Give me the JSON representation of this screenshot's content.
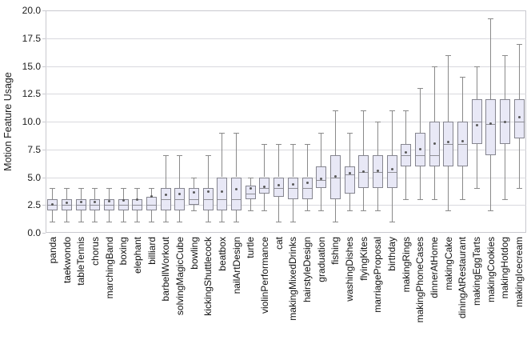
{
  "chart_data": {
    "type": "boxplot",
    "title": "",
    "xlabel": "",
    "ylabel": "Motion Feature Usage",
    "ylim": [
      0,
      20
    ],
    "yticks": [
      0,
      2.5,
      5,
      7.5,
      10,
      12.5,
      15,
      17.5,
      20
    ],
    "grid": "horizontal",
    "legend": "none",
    "marker_note": "dot inside each box marks the mean",
    "categories": [
      "panda",
      "taekwondo",
      "tableTennis",
      "chorus",
      "marchingBand",
      "boxing",
      "elephant",
      "billiard",
      "barbellWorkout",
      "solvingMagicCube",
      "bowling",
      "kickingShuttlecock",
      "beatbox",
      "nailArtDesign",
      "turtle",
      "violinPerformance",
      "cat",
      "makingMixedDrinks",
      "hairstyleDesign",
      "graduation",
      "fishing",
      "washingDishes",
      "flyingKites",
      "marriageProposal",
      "birthday",
      "makingRings",
      "makingPhoneCases",
      "dinnerAtHome",
      "makingCake",
      "diningAtRestaurant",
      "makingEggTarts",
      "makingCookies",
      "makingHotdog",
      "makingIcecream"
    ],
    "series": [
      {
        "label": "panda",
        "low": 1,
        "q1": 2,
        "median": 2.5,
        "q3": 3,
        "high": 4,
        "mean": 2.55
      },
      {
        "label": "taekwondo",
        "low": 1,
        "q1": 2,
        "median": 2.5,
        "q3": 3,
        "high": 4,
        "mean": 2.7
      },
      {
        "label": "tableTennis",
        "low": 1,
        "q1": 2,
        "median": 2.5,
        "q3": 3,
        "high": 4,
        "mean": 2.75
      },
      {
        "label": "chorus",
        "low": 1,
        "q1": 2,
        "median": 2.5,
        "q3": 3,
        "high": 4,
        "mean": 2.8
      },
      {
        "label": "marchingBand",
        "low": 1,
        "q1": 2,
        "median": 2.5,
        "q3": 3,
        "high": 4,
        "mean": 2.85
      },
      {
        "label": "boxing",
        "low": 1,
        "q1": 2,
        "median": 2.5,
        "q3": 3,
        "high": 4,
        "mean": 2.9
      },
      {
        "label": "elephant",
        "low": 1,
        "q1": 2,
        "median": 2.5,
        "q3": 3,
        "high": 4,
        "mean": 2.95
      },
      {
        "label": "billiard",
        "low": 1,
        "q1": 2,
        "median": 2.5,
        "q3": 3.25,
        "high": 4,
        "mean": 3.3
      },
      {
        "label": "barbellWorkout",
        "low": 1,
        "q1": 2,
        "median": 3,
        "q3": 4,
        "high": 7,
        "mean": 3.45
      },
      {
        "label": "solvingMagicCube",
        "low": 1,
        "q1": 2,
        "median": 3,
        "q3": 4,
        "high": 7,
        "mean": 3.5
      },
      {
        "label": "bowling",
        "low": 2,
        "q1": 2.5,
        "median": 3,
        "q3": 4,
        "high": 5,
        "mean": 3.6
      },
      {
        "label": "kickingShuttlecock",
        "low": 1,
        "q1": 2,
        "median": 3,
        "q3": 4,
        "high": 7,
        "mean": 3.7
      },
      {
        "label": "beatbox",
        "low": 1,
        "q1": 2,
        "median": 3,
        "q3": 5,
        "high": 9,
        "mean": 3.7
      },
      {
        "label": "nailArtDesign",
        "low": 1,
        "q1": 2,
        "median": 3,
        "q3": 5,
        "high": 9,
        "mean": 3.9
      },
      {
        "label": "turtle",
        "low": 2,
        "q1": 3,
        "median": 3.5,
        "q3": 4.25,
        "high": 5,
        "mean": 4.0
      },
      {
        "label": "violinPerformance",
        "low": 2,
        "q1": 3.5,
        "median": 4,
        "q3": 5,
        "high": 8,
        "mean": 4.15
      },
      {
        "label": "cat",
        "low": 1,
        "q1": 3.25,
        "median": 4,
        "q3": 5,
        "high": 8,
        "mean": 4.3
      },
      {
        "label": "makingMixedDrinks",
        "low": 1,
        "q1": 3,
        "median": 4,
        "q3": 5,
        "high": 8,
        "mean": 4.35
      },
      {
        "label": "hairstyleDesign",
        "low": 2,
        "q1": 3,
        "median": 4,
        "q3": 5,
        "high": 8,
        "mean": 4.5
      },
      {
        "label": "graduation",
        "low": 2,
        "q1": 4,
        "median": 4.75,
        "q3": 6,
        "high": 9,
        "mean": 4.85
      },
      {
        "label": "fishing",
        "low": 1,
        "q1": 3,
        "median": 5,
        "q3": 7,
        "high": 11,
        "mean": 5.1
      },
      {
        "label": "washingDishes",
        "low": 2,
        "q1": 3.5,
        "median": 5.25,
        "q3": 6,
        "high": 9,
        "mean": 5.35
      },
      {
        "label": "flyingKites",
        "low": 2,
        "q1": 4,
        "median": 5.5,
        "q3": 7,
        "high": 11,
        "mean": 5.5
      },
      {
        "label": "marriageProposal",
        "low": 2,
        "q1": 4,
        "median": 5.5,
        "q3": 7,
        "high": 10,
        "mean": 5.6
      },
      {
        "label": "birthday",
        "low": 1,
        "q1": 4,
        "median": 5.5,
        "q3": 7,
        "high": 11,
        "mean": 5.7
      },
      {
        "label": "makingRings",
        "low": 3,
        "q1": 6,
        "median": 7,
        "q3": 8,
        "high": 11,
        "mean": 7.2
      },
      {
        "label": "makingPhoneCases",
        "low": 3,
        "q1": 6,
        "median": 7,
        "q3": 9,
        "high": 13,
        "mean": 7.5
      },
      {
        "label": "dinnerAtHome",
        "low": 3,
        "q1": 6,
        "median": 7,
        "q3": 10,
        "high": 15,
        "mean": 8.0
      },
      {
        "label": "makingCake",
        "low": 2,
        "q1": 6,
        "median": 8,
        "q3": 10,
        "high": 16,
        "mean": 8.15
      },
      {
        "label": "diningAtRestaurant",
        "low": 3,
        "q1": 6,
        "median": 8,
        "q3": 10,
        "high": 14,
        "mean": 8.25
      },
      {
        "label": "makingEggTarts",
        "low": 4,
        "q1": 8,
        "median": 10,
        "q3": 12,
        "high": 15,
        "mean": 9.7
      },
      {
        "label": "makingCookies",
        "low": 2,
        "q1": 7,
        "median": 9.75,
        "q3": 12,
        "high": 19.3,
        "mean": 9.8
      },
      {
        "label": "makingHotdog",
        "low": 3,
        "q1": 8,
        "median": 10,
        "q3": 12,
        "high": 16,
        "mean": 9.95
      },
      {
        "label": "makingIcecream",
        "low": 4,
        "q1": 8.5,
        "median": 10,
        "q3": 12,
        "high": 17,
        "mean": 10.4
      }
    ],
    "colors": {
      "box_fill": "rgba(230,230,245,0.9)",
      "box_border": "#85858f",
      "whisker": "#8a8a8a",
      "median": "#8f8f96",
      "mean_dot": "#595959",
      "grid": "#d9d9de",
      "spine": "#c9c9cf",
      "text": "#1c1c1c"
    }
  }
}
